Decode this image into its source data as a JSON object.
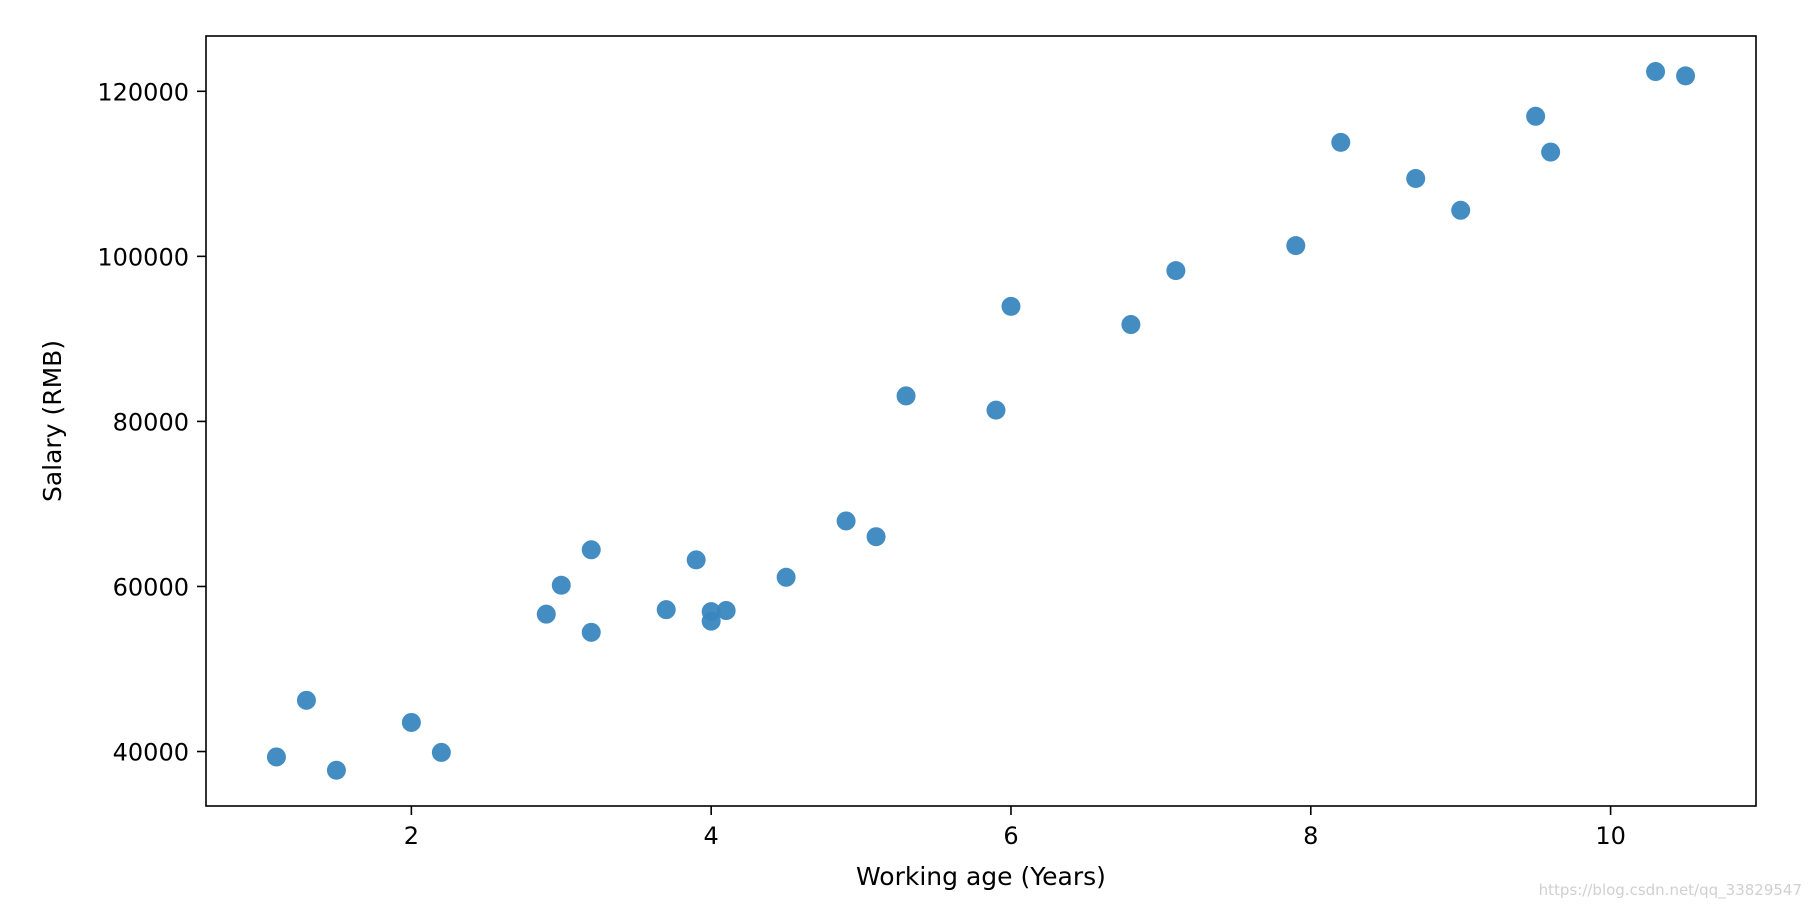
{
  "chart_data": {
    "type": "scatter",
    "title": "",
    "xlabel": "Working age (Years)",
    "ylabel": "Salary (RMB)",
    "xlim": [
      0.63,
      10.97
    ],
    "ylim": [
      33400,
      126700
    ],
    "grid": false,
    "legend": "none",
    "marker_color": "#3a87c0",
    "x_ticks": [
      2,
      4,
      6,
      8,
      10
    ],
    "x_tick_labels": [
      "2",
      "4",
      "6",
      "8",
      "10"
    ],
    "y_ticks": [
      40000,
      60000,
      80000,
      100000,
      120000
    ],
    "y_tick_labels": [
      "40000",
      "60000",
      "80000",
      "100000",
      "120000"
    ],
    "series": [
      {
        "x": [
          1.1,
          1.3,
          1.5,
          2.0,
          2.2,
          2.9,
          3.0,
          3.2,
          3.2,
          3.7,
          3.9,
          4.0,
          4.0,
          4.1,
          4.5,
          4.9,
          5.1,
          5.3,
          5.9,
          6.0,
          6.8,
          7.1,
          7.9,
          8.2,
          8.7,
          9.0,
          9.5,
          9.6,
          10.3,
          10.5
        ],
        "y": [
          39343,
          46205,
          37731,
          43525,
          39891,
          56642,
          60150,
          54445,
          64445,
          57189,
          63218,
          55794,
          56957,
          57081,
          61111,
          67938,
          66029,
          83088,
          81363,
          93940,
          91738,
          98273,
          101302,
          113812,
          109431,
          105582,
          116969,
          112635,
          122391,
          121872
        ]
      }
    ]
  },
  "watermark": "https://blog.csdn.net/qq_33829547"
}
